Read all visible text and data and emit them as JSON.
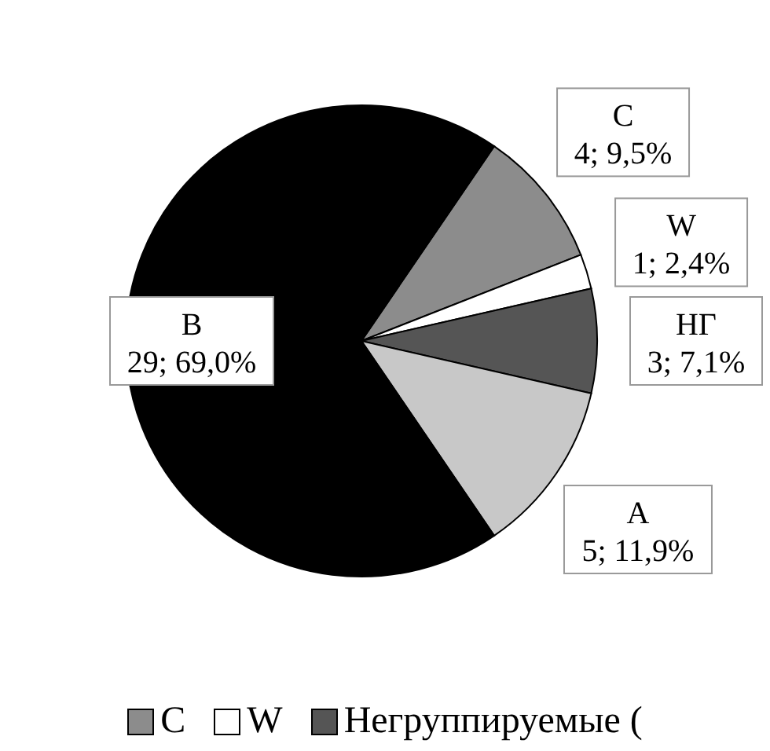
{
  "chart_data": {
    "type": "pie",
    "categories": [
      "C",
      "W",
      "Негруппируемые (",
      null,
      null
    ],
    "values": [
      4,
      1,
      3,
      5,
      29
    ],
    "colors": [
      "#8c8c8c",
      "#ffffff",
      "#555555",
      "#c8c8c8",
      "#000000"
    ],
    "value_labels": [
      "C\n4; 9,5%",
      "W\n1; 2,4%",
      "НГ\n3; 7,1%",
      "A\n5; 11,9%",
      "B\n29; 69,0%"
    ],
    "legend": "bottom"
  }
}
